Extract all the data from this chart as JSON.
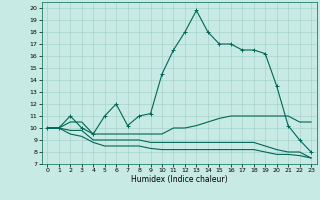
{
  "title": "",
  "xlabel": "Humidex (Indice chaleur)",
  "xlim": [
    -0.5,
    23.5
  ],
  "ylim": [
    7,
    20.5
  ],
  "yticks": [
    7,
    8,
    9,
    10,
    11,
    12,
    13,
    14,
    15,
    16,
    17,
    18,
    19,
    20
  ],
  "xticks": [
    0,
    1,
    2,
    3,
    4,
    5,
    6,
    7,
    8,
    9,
    10,
    11,
    12,
    13,
    14,
    15,
    16,
    17,
    18,
    19,
    20,
    21,
    22,
    23
  ],
  "background_color": "#c8eae4",
  "grid_color": "#a8d4cc",
  "line_color": "#006655",
  "line1_y": [
    10,
    10,
    11,
    10,
    9.5,
    11,
    12,
    10.2,
    11,
    11.2,
    14.5,
    16.5,
    18,
    19.8,
    18,
    17,
    17,
    16.5,
    16.5,
    16.2,
    13.5,
    10.2,
    9,
    8
  ],
  "line2_y": [
    10,
    10,
    10.5,
    10.5,
    9.5,
    9.5,
    9.5,
    9.5,
    9.5,
    9.5,
    9.5,
    10,
    10,
    10.2,
    10.5,
    10.8,
    11,
    11,
    11,
    11,
    11,
    11,
    10.5,
    10.5
  ],
  "line3_y": [
    10,
    10,
    9.8,
    9.8,
    9,
    9,
    9,
    9,
    9,
    8.8,
    8.8,
    8.8,
    8.8,
    8.8,
    8.8,
    8.8,
    8.8,
    8.8,
    8.8,
    8.5,
    8.2,
    8,
    8,
    7.5
  ],
  "line4_y": [
    10,
    10,
    9.5,
    9.3,
    8.8,
    8.5,
    8.5,
    8.5,
    8.5,
    8.3,
    8.2,
    8.2,
    8.2,
    8.2,
    8.2,
    8.2,
    8.2,
    8.2,
    8.2,
    8.0,
    7.8,
    7.8,
    7.7,
    7.5
  ]
}
